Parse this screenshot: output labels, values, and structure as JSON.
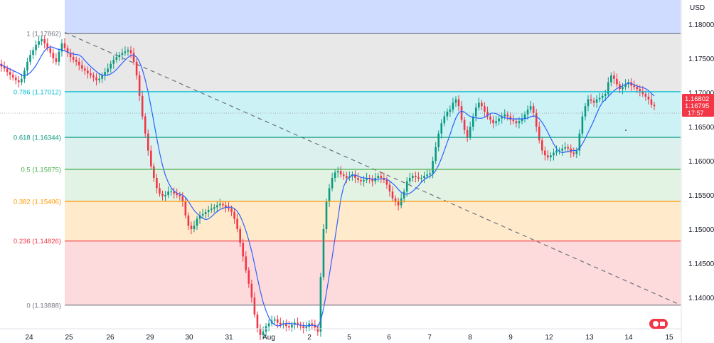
{
  "chart_data": {
    "type": "candlestick",
    "currency_label": "USD",
    "y_ticks": [
      1.18,
      1.175,
      1.17,
      1.165,
      1.16,
      1.155,
      1.15,
      1.145,
      1.14
    ],
    "x_ticks": [
      "24",
      "25",
      "26",
      "29",
      "30",
      "31",
      "Aug",
      "2",
      "5",
      "6",
      "7",
      "8",
      "9",
      "12",
      "13",
      "14",
      "15"
    ],
    "fib_levels": [
      {
        "label": "1 (1.17862)",
        "value": 1.17862,
        "color": "#787b86",
        "fill": null
      },
      {
        "label": "0.786 (1.17012)",
        "value": 1.17012,
        "color": "#00bcd4",
        "fill": "rgba(150,150,150,0.22)"
      },
      {
        "label": "0.618 (1.16344)",
        "value": 1.16344,
        "color": "#089981",
        "fill": "rgba(0,188,212,0.20)"
      },
      {
        "label": "0.5 (1.15875)",
        "value": 1.15875,
        "color": "#4caf50",
        "fill": "rgba(8,153,129,0.14)"
      },
      {
        "label": "0.382 (1.15406)",
        "value": 1.15406,
        "color": "#ff9800",
        "fill": "rgba(76,175,80,0.16)"
      },
      {
        "label": "0.236 (1.14826)",
        "value": 1.14826,
        "color": "#f23645",
        "fill": "rgba(255,152,0,0.20)"
      },
      {
        "label": "0 (1.13888)",
        "value": 1.13888,
        "color": "#787b86",
        "fill": "rgba(242,54,69,0.18)"
      }
    ],
    "price_labels": {
      "last": "1.16802",
      "prev": "1.16795",
      "timer": "17:57"
    },
    "colors": {
      "up": "#089981",
      "down": "#f23645",
      "ma": "#2962ff",
      "blue_zone": "#d0dcff",
      "price_tag": "#f23645"
    },
    "trend_line": {
      "start": {
        "x": "25",
        "y": 1.1788
      },
      "end": {
        "x": "15",
        "y": 1.1389
      }
    },
    "closes": [
      1.1742,
      1.1738,
      1.1735,
      1.173,
      1.1726,
      1.1722,
      1.1718,
      1.1715,
      1.172,
      1.1732,
      1.1745,
      1.1755,
      1.1762,
      1.177,
      1.1775,
      1.1778,
      1.1772,
      1.1765,
      1.1758,
      1.175,
      1.1745,
      1.176,
      1.1772,
      1.1765,
      1.1758,
      1.1752,
      1.1748,
      1.1745,
      1.174,
      1.1735,
      1.1732,
      1.1728,
      1.1725,
      1.1722,
      1.1718,
      1.172,
      1.1725,
      1.173,
      1.1735,
      1.1742,
      1.1748,
      1.1752,
      1.1755,
      1.1758,
      1.176,
      1.1762,
      1.1758,
      1.1745,
      1.1725,
      1.1695,
      1.1665,
      1.164,
      1.1615,
      1.1592,
      1.1575,
      1.156,
      1.1552,
      1.1548,
      1.155,
      1.1555,
      1.1555,
      1.1552,
      1.155,
      1.1548,
      1.154,
      1.152,
      1.1505,
      1.15,
      1.1505,
      1.1515,
      1.152,
      1.1522,
      1.1525,
      1.1528,
      1.153,
      1.1532,
      1.1535,
      1.1537,
      1.1535,
      1.1532,
      1.153,
      1.1525,
      1.1515,
      1.15,
      1.148,
      1.146,
      1.144,
      1.142,
      1.14,
      1.1375,
      1.1355,
      1.1345,
      1.135,
      1.1358,
      1.1362,
      1.1366,
      1.1368,
      1.1363,
      1.136,
      1.1362,
      1.1358,
      1.1356,
      1.136,
      1.1363,
      1.136,
      1.1358,
      1.1355,
      1.1357,
      1.1362,
      1.136,
      1.1356,
      1.135,
      1.143,
      1.15,
      1.154,
      1.156,
      1.1575,
      1.1583,
      1.1585,
      1.158,
      1.1578,
      1.1575,
      1.1577,
      1.158,
      1.1575,
      1.1572,
      1.157,
      1.1572,
      1.1575,
      1.1573,
      1.157,
      1.1575,
      1.1578,
      1.1575,
      1.1572,
      1.1565,
      1.1555,
      1.1545,
      1.154,
      1.1535,
      1.1545,
      1.1555,
      1.157,
      1.1575,
      1.1578,
      1.1576,
      1.1574,
      1.1575,
      1.1578,
      1.158,
      1.1582,
      1.16,
      1.162,
      1.164,
      1.1655,
      1.1665,
      1.1672,
      1.1675,
      1.1685,
      1.169,
      1.168,
      1.166,
      1.1645,
      1.1635,
      1.165,
      1.1665,
      1.1678,
      1.1685,
      1.168,
      1.1672,
      1.1665,
      1.166,
      1.1655,
      1.1658,
      1.1662,
      1.1665,
      1.1668,
      1.1665,
      1.166,
      1.1658,
      1.1655,
      1.1658,
      1.1662,
      1.1668,
      1.1675,
      1.168,
      1.167,
      1.165,
      1.163,
      1.1615,
      1.1608,
      1.1605,
      1.1608,
      1.1612,
      1.1615,
      1.1615,
      1.1618,
      1.162,
      1.1618,
      1.1612,
      1.161,
      1.1615,
      1.164,
      1.1665,
      1.168,
      1.169,
      1.1688,
      1.1685,
      1.169,
      1.1692,
      1.1695,
      1.1698,
      1.1715,
      1.1725,
      1.172,
      1.1712,
      1.1705,
      1.1708,
      1.1712,
      1.1715,
      1.171,
      1.1708,
      1.1705,
      1.1702,
      1.1698,
      1.1694,
      1.169,
      1.1682,
      1.168
    ],
    "ma_period": 8
  }
}
